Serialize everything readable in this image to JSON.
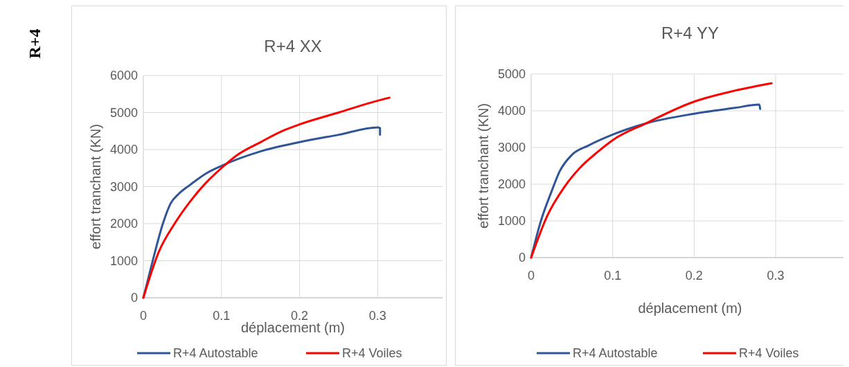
{
  "chart_data": [
    {
      "type": "line",
      "title": "R+4 XX",
      "xlabel": "déplacement (m)",
      "ylabel": "effort tranchant (KN)",
      "annotations": [
        "R+4"
      ],
      "xlim": [
        0,
        0.383
      ],
      "xticks": [
        0,
        0.1,
        0.2,
        0.3
      ],
      "ylim": [
        0,
        6000
      ],
      "yticks": [
        0,
        1000,
        2000,
        3000,
        4000,
        5000,
        6000
      ],
      "grid": true,
      "legend": "bottom",
      "marker": "none",
      "line_style": "solid",
      "series": [
        {
          "name": "R+4 Autostable",
          "color": "#2f5597",
          "x": [
            0,
            0.012,
            0.025,
            0.035,
            0.045,
            0.06,
            0.08,
            0.1,
            0.15,
            0.2,
            0.25,
            0.3,
            0.303,
            0.303
          ],
          "values": [
            0,
            1000,
            2000,
            2550,
            2800,
            3050,
            3350,
            3560,
            3950,
            4200,
            4400,
            4600,
            4580,
            4400
          ]
        },
        {
          "name": "R+4 Voiles",
          "color": "#ff0000",
          "x": [
            0,
            0.02,
            0.04,
            0.06,
            0.08,
            0.1,
            0.12,
            0.15,
            0.18,
            0.2,
            0.25,
            0.3,
            0.315
          ],
          "values": [
            0,
            1250,
            2000,
            2600,
            3100,
            3500,
            3850,
            4200,
            4520,
            4680,
            5000,
            5320,
            5400
          ]
        }
      ]
    },
    {
      "type": "line",
      "title": "R+4 YY",
      "xlabel": "déplacement (m)",
      "ylabel": "effort tranchant (KN)",
      "xlim": [
        0,
        0.39
      ],
      "xticks": [
        0,
        0.1,
        0.2,
        0.3
      ],
      "ylim": [
        0,
        5000
      ],
      "yticks": [
        0,
        1000,
        2000,
        3000,
        4000,
        5000
      ],
      "grid": true,
      "legend": "bottom",
      "marker": "none",
      "line_style": "solid",
      "series": [
        {
          "name": "R+4 Autostable",
          "color": "#2f5597",
          "x": [
            0,
            0.012,
            0.025,
            0.035,
            0.05,
            0.07,
            0.1,
            0.14,
            0.2,
            0.25,
            0.28,
            0.281
          ],
          "values": [
            0,
            1000,
            1800,
            2350,
            2800,
            3050,
            3350,
            3650,
            3920,
            4080,
            4170,
            4050
          ]
        },
        {
          "name": "R+4 Voiles",
          "color": "#ff0000",
          "x": [
            0,
            0.02,
            0.04,
            0.06,
            0.08,
            0.1,
            0.14,
            0.2,
            0.25,
            0.295
          ],
          "values": [
            0,
            1150,
            1900,
            2450,
            2850,
            3200,
            3650,
            4250,
            4550,
            4750
          ]
        }
      ]
    }
  ]
}
